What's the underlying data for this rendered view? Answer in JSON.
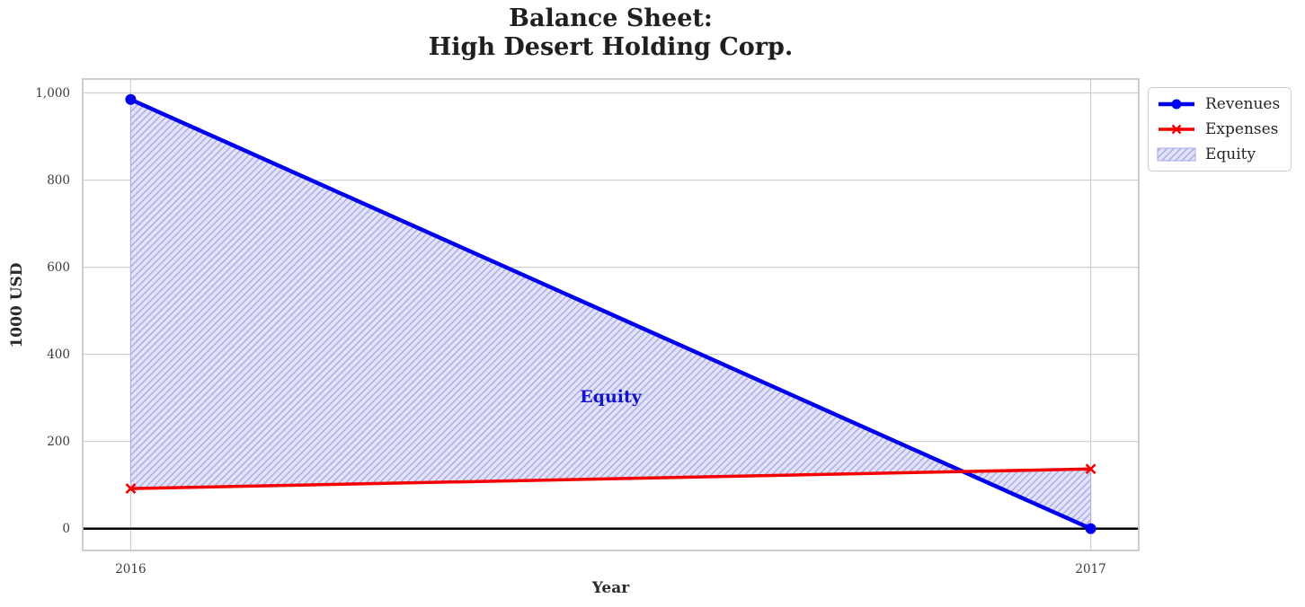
{
  "figure": {
    "title": "Balance Sheet:\nHigh Desert Holding Corp."
  },
  "chart_data": {
    "type": "line",
    "title": "Balance Sheet:\nHigh Desert Holding Corp.",
    "xlabel": "Year",
    "ylabel": "1000 USD",
    "x": [
      2016,
      2017
    ],
    "series": [
      {
        "name": "Revenues",
        "values": [
          985,
          0
        ],
        "color": "#0000ee",
        "marker": "circle",
        "line_width": 4.5,
        "marker_size": 6
      },
      {
        "name": "Expenses",
        "values": [
          92,
          137
        ],
        "color": "#f40000",
        "marker": "x",
        "line_width": 3.5,
        "marker_size": 5
      }
    ],
    "fill_between": {
      "label": "Equity",
      "between": [
        "Revenues",
        "Expenses"
      ],
      "face_color": "#e2e2f8",
      "hatch_color": "#a9a9e6",
      "hatch_style": "diagonal"
    },
    "annotation": {
      "text": "Equity",
      "x": 2016.5,
      "y": 302,
      "color": "#1414cc"
    },
    "xlim": [
      2015.95,
      2017.05
    ],
    "ylim": [
      -50,
      1032
    ],
    "xticks": [
      {
        "v": 2016,
        "label": "2016"
      },
      {
        "v": 2017,
        "label": "2017"
      }
    ],
    "yticks": [
      {
        "v": 0,
        "label": "0"
      },
      {
        "v": 200,
        "label": "200"
      },
      {
        "v": 400,
        "label": "400"
      },
      {
        "v": 600,
        "label": "600"
      },
      {
        "v": 800,
        "label": "800"
      },
      {
        "v": 1000,
        "label": "1,000"
      }
    ],
    "grid": true,
    "grid_color": "#cfcfcf",
    "border_color": "#c8c8c8",
    "zero_line_color": "#000000",
    "legend_position": "outside-top-right",
    "legend_entries": [
      "Revenues",
      "Expenses",
      "Equity"
    ]
  }
}
